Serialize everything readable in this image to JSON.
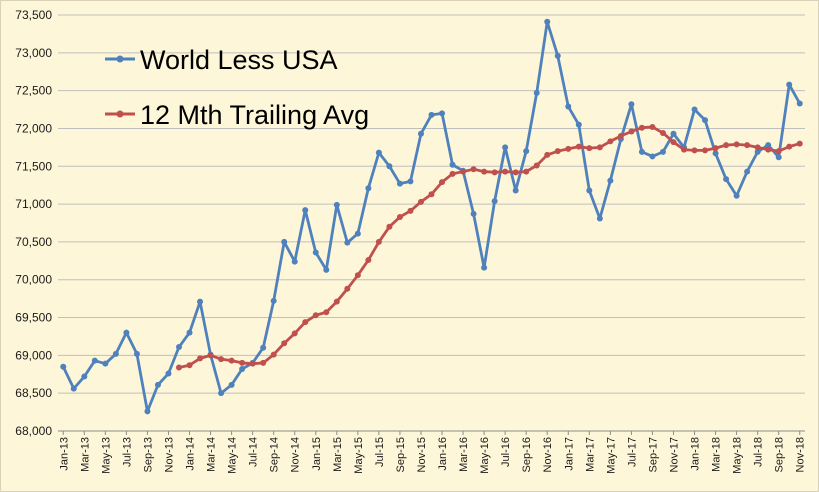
{
  "chart_data": {
    "type": "line",
    "ylim": [
      68000,
      73500
    ],
    "yticks": [
      "68,000",
      "68,500",
      "69,000",
      "69,500",
      "70,000",
      "70,500",
      "71,000",
      "71,500",
      "72,000",
      "72,500",
      "73,000",
      "73,500"
    ],
    "ytick_values": [
      68000,
      68500,
      69000,
      69500,
      70000,
      70500,
      71000,
      71500,
      72000,
      72500,
      73000,
      73500
    ],
    "x": [
      "Jan-13",
      "Feb-13",
      "Mar-13",
      "Apr-13",
      "May-13",
      "Jun-13",
      "Jul-13",
      "Aug-13",
      "Sep-13",
      "Oct-13",
      "Nov-13",
      "Dec-13",
      "Jan-14",
      "Feb-14",
      "Mar-14",
      "Apr-14",
      "May-14",
      "Jun-14",
      "Jul-14",
      "Aug-14",
      "Sep-14",
      "Oct-14",
      "Nov-14",
      "Dec-14",
      "Jan-15",
      "Feb-15",
      "Mar-15",
      "Apr-15",
      "May-15",
      "Jun-15",
      "Jul-15",
      "Aug-15",
      "Sep-15",
      "Oct-15",
      "Nov-15",
      "Dec-15",
      "Jan-16",
      "Feb-16",
      "Mar-16",
      "Apr-16",
      "May-16",
      "Jun-16",
      "Jul-16",
      "Aug-16",
      "Sep-16",
      "Oct-16",
      "Nov-16",
      "Dec-16",
      "Jan-17",
      "Feb-17",
      "Mar-17",
      "Apr-17",
      "May-17",
      "Jun-17",
      "Jul-17",
      "Aug-17",
      "Sep-17",
      "Oct-17",
      "Nov-17",
      "Dec-17",
      "Jan-18",
      "Feb-18",
      "Mar-18",
      "Apr-18",
      "May-18",
      "Jun-18",
      "Jul-18",
      "Aug-18",
      "Sep-18",
      "Oct-18",
      "Nov-18"
    ],
    "xtick_labels": [
      "Jan-13",
      "Mar-13",
      "May-13",
      "Jul-13",
      "Sep-13",
      "Nov-13",
      "Jan-14",
      "Mar-14",
      "May-14",
      "Jul-14",
      "Sep-14",
      "Nov-14",
      "Jan-15",
      "Mar-15",
      "May-15",
      "Jul-15",
      "Sep-15",
      "Nov-15",
      "Jan-16",
      "Mar-16",
      "May-16",
      "Jul-16",
      "Sep-16",
      "Nov-16",
      "Jan-17",
      "Mar-17",
      "May-17",
      "Jul-17",
      "Sep-17",
      "Nov-17",
      "Jan-18",
      "Mar-18",
      "May-18",
      "Jul-18",
      "Sep-18",
      "Nov-18"
    ],
    "grid": "horizontal",
    "legend_position": "top-left",
    "series": [
      {
        "name": "World Less USA",
        "color": "#4F81BD",
        "values": [
          68850,
          68560,
          68720,
          68930,
          68890,
          69020,
          69300,
          69020,
          68260,
          68610,
          68760,
          69110,
          69300,
          69710,
          69010,
          68500,
          68610,
          68820,
          68900,
          69100,
          69720,
          70500,
          70240,
          70920,
          70360,
          70130,
          70990,
          70490,
          70610,
          71210,
          71680,
          71500,
          71270,
          71300,
          71930,
          72180,
          72200,
          71520,
          71440,
          70870,
          70160,
          71040,
          71750,
          71180,
          71700,
          72470,
          73410,
          72960,
          72290,
          72050,
          71180,
          70810,
          71310,
          71860,
          72320,
          71690,
          71630,
          71690,
          71930,
          71750,
          72250,
          72110,
          71670,
          71330,
          71110,
          71430,
          71690,
          71780,
          71620,
          72580,
          72330
        ]
      },
      {
        "name": "12 Mth Trailing Avg",
        "color": "#C0504D",
        "values": [
          null,
          null,
          null,
          null,
          null,
          null,
          null,
          null,
          null,
          null,
          null,
          68840,
          68870,
          68960,
          69000,
          68950,
          68930,
          68900,
          68890,
          68900,
          69010,
          69160,
          69290,
          69440,
          69530,
          69570,
          69710,
          69880,
          70060,
          70260,
          70500,
          70700,
          70830,
          70910,
          71030,
          71130,
          71290,
          71400,
          71430,
          71460,
          71430,
          71420,
          71430,
          71420,
          71430,
          71510,
          71650,
          71700,
          71730,
          71760,
          71740,
          71750,
          71830,
          71900,
          71960,
          72010,
          72020,
          71940,
          71820,
          71720,
          71710,
          71710,
          71740,
          71780,
          71790,
          71780,
          71750,
          71720,
          71700,
          71760,
          71800
        ]
      }
    ]
  }
}
